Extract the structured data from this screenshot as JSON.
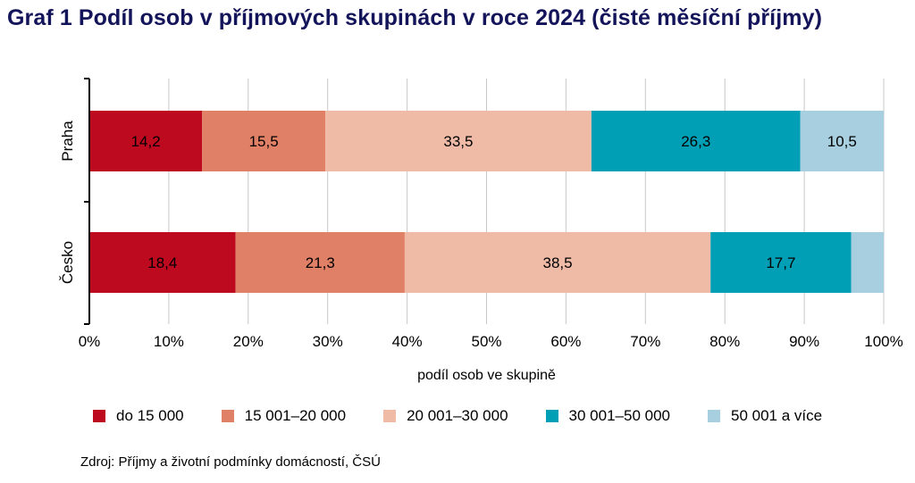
{
  "title": "Graf 1 Podíl osob v příjmových skupinách v roce 2024 (čisté měsíční příjmy)",
  "source": "Zdroj: Příjmy  a životní podmínky  domácností, ČSÚ",
  "chart_data": {
    "type": "bar",
    "orientation": "horizontal",
    "stacked": true,
    "categories": [
      "Praha",
      "Česko"
    ],
    "series": [
      {
        "name": "do 15 000",
        "color": "#be0a1e",
        "values": [
          14.2,
          18.4
        ],
        "labels": [
          "14,2",
          "18,4"
        ]
      },
      {
        "name": "15 001–20 000",
        "color": "#e08066",
        "values": [
          15.5,
          21.3
        ],
        "labels": [
          "15,5",
          "21,3"
        ]
      },
      {
        "name": "20 001–30 000",
        "color": "#f0bba6",
        "values": [
          33.5,
          38.5
        ],
        "labels": [
          "33,5",
          "38,5"
        ]
      },
      {
        "name": "30 001–50 000",
        "color": "#009fb6",
        "values": [
          26.3,
          17.7
        ],
        "labels": [
          "26,3",
          "17,7"
        ]
      },
      {
        "name": "50 001 a více",
        "color": "#a8cfdf",
        "values": [
          10.5,
          4.1
        ],
        "labels": [
          "10,5",
          ""
        ]
      }
    ],
    "xlabel": "podíl osob ve skupině",
    "xlim": [
      0,
      100
    ],
    "xticks": [
      "0%",
      "10%",
      "20%",
      "30%",
      "40%",
      "50%",
      "60%",
      "70%",
      "80%",
      "90%",
      "100%"
    ],
    "grid": true,
    "legend": "bottom"
  }
}
